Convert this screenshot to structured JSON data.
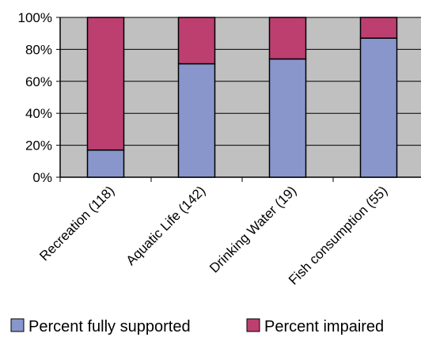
{
  "chart_data": {
    "type": "bar",
    "stacked": true,
    "categories": [
      "Recreation (118)",
      "Aquatic Life (142)",
      "Drinking Water (19)",
      "Fish consumption (55)"
    ],
    "series": [
      {
        "name": "Percent fully supported",
        "values": [
          17,
          71,
          74,
          87
        ],
        "color": "#8896cc"
      },
      {
        "name": "Percent impaired",
        "values": [
          83,
          29,
          26,
          13
        ],
        "color": "#bc3f70"
      }
    ],
    "y_ticks": [
      "0%",
      "20%",
      "40%",
      "60%",
      "80%",
      "100%"
    ],
    "ylim": [
      0,
      100
    ],
    "grid": true,
    "legend_position": "bottom",
    "plot_background": "#c0c0c0"
  }
}
